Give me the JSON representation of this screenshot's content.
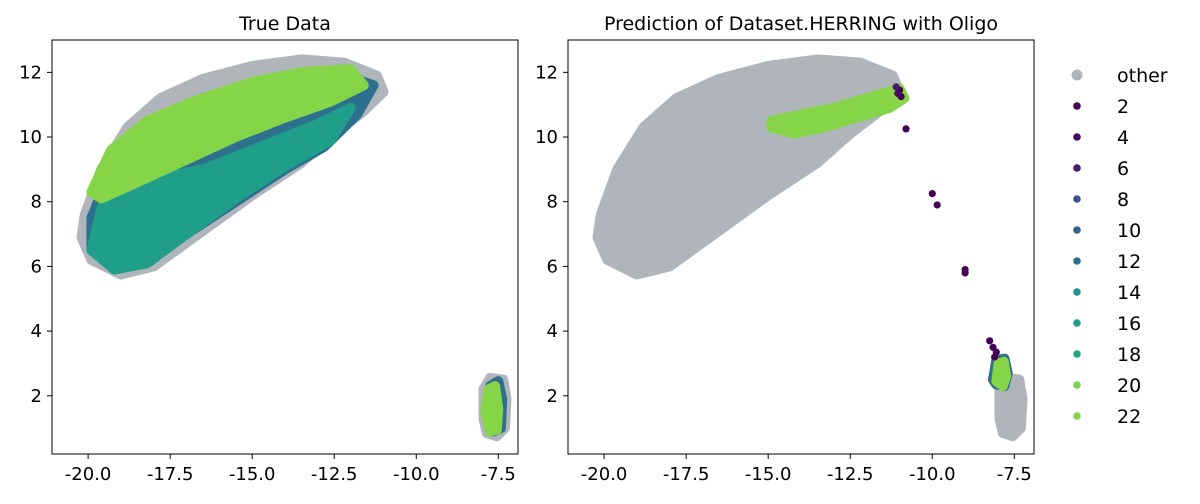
{
  "colors": {
    "other": "#b0b5bc",
    "c2": "#440154",
    "c4": "#460b5e",
    "c6": "#481a6c",
    "c8": "#3a528b",
    "c10": "#33638d",
    "c12": "#2d708e",
    "c14": "#21918c",
    "c16": "#1f9e89",
    "c18": "#22a884",
    "c20": "#7ad151",
    "c22": "#86d549"
  },
  "chart_data": [
    {
      "type": "scatter",
      "title": "True Data",
      "xlabel": "",
      "ylabel": "",
      "xlim": [
        -21.1,
        -6.9
      ],
      "ylim": [
        0.2,
        13.0
      ],
      "xticks": [
        -20.0,
        -17.5,
        -15.0,
        -12.5,
        -10.0,
        -7.5
      ],
      "xtick_labels": [
        "-20.0",
        "-17.5",
        "-15.0",
        "-12.5",
        "-10.0",
        "-7.5"
      ],
      "yticks": [
        2,
        4,
        6,
        8,
        10,
        12
      ],
      "ytick_labels": [
        "2",
        "4",
        "6",
        "8",
        "10",
        "12"
      ],
      "grid": false,
      "regions": [
        {
          "series": "other",
          "shape": "blob",
          "polygon": [
            [
              -20.1,
              7.6
            ],
            [
              -19.6,
              9.0
            ],
            [
              -18.8,
              10.3
            ],
            [
              -17.8,
              11.2
            ],
            [
              -16.5,
              11.8
            ],
            [
              -15.0,
              12.2
            ],
            [
              -13.5,
              12.4
            ],
            [
              -12.2,
              12.3
            ],
            [
              -11.2,
              11.9
            ],
            [
              -11.0,
              11.4
            ],
            [
              -11.6,
              10.8
            ],
            [
              -12.5,
              10.1
            ],
            [
              -13.5,
              9.2
            ],
            [
              -15.0,
              8.2
            ],
            [
              -16.5,
              7.1
            ],
            [
              -18.0,
              6.0
            ],
            [
              -19.0,
              5.75
            ],
            [
              -19.9,
              6.2
            ],
            [
              -20.2,
              6.9
            ]
          ]
        },
        {
          "series": "12",
          "shape": "blob",
          "polygon": [
            [
              -19.5,
              8.5
            ],
            [
              -18.5,
              10.0
            ],
            [
              -16.5,
              11.2
            ],
            [
              -14.5,
              11.8
            ],
            [
              -12.5,
              12.0
            ],
            [
              -11.3,
              11.6
            ],
            [
              -11.8,
              10.7
            ],
            [
              -12.8,
              9.7
            ],
            [
              -14.0,
              9.0
            ],
            [
              -15.5,
              8.0
            ],
            [
              -17.0,
              7.0
            ],
            [
              -18.2,
              6.2
            ],
            [
              -19.2,
              6.1
            ],
            [
              -19.9,
              6.6
            ],
            [
              -19.9,
              7.5
            ]
          ]
        },
        {
          "series": "16",
          "shape": "blob",
          "polygon": [
            [
              -19.9,
              6.5
            ],
            [
              -19.6,
              7.8
            ],
            [
              -18.5,
              8.6
            ],
            [
              -16.5,
              9.0
            ],
            [
              -14.5,
              9.8
            ],
            [
              -13.0,
              10.4
            ],
            [
              -12.0,
              10.9
            ],
            [
              -12.6,
              9.9
            ],
            [
              -14.0,
              9.1
            ],
            [
              -15.5,
              8.1
            ],
            [
              -17.0,
              7.0
            ],
            [
              -18.2,
              6.1
            ],
            [
              -19.2,
              5.9
            ]
          ]
        },
        {
          "series": "22",
          "shape": "blob",
          "polygon": [
            [
              -19.9,
              8.3
            ],
            [
              -19.3,
              9.6
            ],
            [
              -18.2,
              10.5
            ],
            [
              -16.8,
              11.1
            ],
            [
              -15.0,
              11.7
            ],
            [
              -13.5,
              12.0
            ],
            [
              -12.0,
              12.1
            ],
            [
              -11.6,
              11.6
            ],
            [
              -12.6,
              11.1
            ],
            [
              -14.0,
              10.6
            ],
            [
              -15.5,
              10.0
            ],
            [
              -17.0,
              9.3
            ],
            [
              -18.5,
              8.6
            ],
            [
              -19.6,
              8.1
            ]
          ]
        },
        {
          "series": "other",
          "shape": "blob",
          "polygon": [
            [
              -7.95,
              1.3
            ],
            [
              -7.95,
              2.2
            ],
            [
              -7.75,
              2.55
            ],
            [
              -7.35,
              2.5
            ],
            [
              -7.25,
              1.9
            ],
            [
              -7.3,
              1.0
            ],
            [
              -7.55,
              0.75
            ],
            [
              -7.85,
              0.85
            ]
          ]
        },
        {
          "series": "12",
          "shape": "blob",
          "polygon": [
            [
              -7.8,
              1.4
            ],
            [
              -7.75,
              2.3
            ],
            [
              -7.5,
              2.45
            ],
            [
              -7.38,
              1.9
            ],
            [
              -7.42,
              1.0
            ],
            [
              -7.65,
              0.9
            ]
          ]
        },
        {
          "series": "22",
          "shape": "blob",
          "polygon": [
            [
              -7.9,
              1.5
            ],
            [
              -7.8,
              2.2
            ],
            [
              -7.6,
              2.3
            ],
            [
              -7.5,
              1.6
            ],
            [
              -7.55,
              0.95
            ],
            [
              -7.75,
              0.9
            ]
          ]
        }
      ]
    },
    {
      "type": "scatter",
      "title": "Prediction of Dataset.HERRING with Oligo",
      "xlabel": "",
      "ylabel": "",
      "xlim": [
        -21.1,
        -6.9
      ],
      "ylim": [
        0.2,
        13.0
      ],
      "xticks": [
        -20.0,
        -17.5,
        -15.0,
        -12.5,
        -10.0,
        -7.5
      ],
      "xtick_labels": [
        "-20.0",
        "-17.5",
        "-15.0",
        "-12.5",
        "-10.0",
        "-7.5"
      ],
      "yticks": [
        2,
        4,
        6,
        8,
        10,
        12
      ],
      "ytick_labels": [
        "2",
        "4",
        "6",
        "8",
        "10",
        "12"
      ],
      "grid": false,
      "regions": [
        {
          "series": "other",
          "shape": "blob",
          "polygon": [
            [
              -20.1,
              7.6
            ],
            [
              -19.6,
              9.0
            ],
            [
              -18.8,
              10.3
            ],
            [
              -17.8,
              11.2
            ],
            [
              -16.5,
              11.8
            ],
            [
              -15.0,
              12.2
            ],
            [
              -13.5,
              12.4
            ],
            [
              -12.2,
              12.3
            ],
            [
              -11.2,
              11.9
            ],
            [
              -11.0,
              11.4
            ],
            [
              -11.6,
              10.8
            ],
            [
              -12.5,
              10.1
            ],
            [
              -13.5,
              9.2
            ],
            [
              -15.0,
              8.2
            ],
            [
              -16.5,
              7.1
            ],
            [
              -18.0,
              6.0
            ],
            [
              -19.0,
              5.75
            ],
            [
              -19.9,
              6.2
            ],
            [
              -20.2,
              6.9
            ]
          ]
        },
        {
          "series": "other",
          "shape": "blob",
          "polygon": [
            [
              -7.95,
              1.3
            ],
            [
              -7.95,
              2.2
            ],
            [
              -7.75,
              2.55
            ],
            [
              -7.35,
              2.5
            ],
            [
              -7.25,
              1.9
            ],
            [
              -7.3,
              1.0
            ],
            [
              -7.55,
              0.75
            ],
            [
              -7.85,
              0.85
            ]
          ]
        },
        {
          "series": "22",
          "shape": "blob",
          "polygon": [
            [
              -14.9,
              10.5
            ],
            [
              -14.0,
              10.7
            ],
            [
              -13.0,
              10.9
            ],
            [
              -12.0,
              11.2
            ],
            [
              -11.0,
              11.5
            ],
            [
              -10.85,
              11.2
            ],
            [
              -11.3,
              10.9
            ],
            [
              -12.3,
              10.6
            ],
            [
              -13.3,
              10.3
            ],
            [
              -14.2,
              10.1
            ],
            [
              -14.9,
              10.3
            ]
          ]
        },
        {
          "series": "12",
          "shape": "blob",
          "polygon": [
            [
              -8.15,
              2.5
            ],
            [
              -8.05,
              3.1
            ],
            [
              -7.8,
              3.15
            ],
            [
              -7.7,
              2.7
            ],
            [
              -7.8,
              2.3
            ],
            [
              -8.05,
              2.35
            ]
          ]
        },
        {
          "series": "22",
          "shape": "blob",
          "polygon": [
            [
              -8.05,
              2.45
            ],
            [
              -7.98,
              3.0
            ],
            [
              -7.82,
              3.05
            ],
            [
              -7.75,
              2.6
            ],
            [
              -7.85,
              2.3
            ]
          ]
        }
      ],
      "points": [
        {
          "series": "2",
          "x": -10.8,
          "y": 10.25
        },
        {
          "series": "2",
          "x": -10.95,
          "y": 11.25
        },
        {
          "series": "2",
          "x": -11.0,
          "y": 11.45
        },
        {
          "series": "2",
          "x": -10.0,
          "y": 8.25
        },
        {
          "series": "2",
          "x": -9.85,
          "y": 7.9
        },
        {
          "series": "2",
          "x": -9.0,
          "y": 5.9
        },
        {
          "series": "2",
          "x": -9.0,
          "y": 5.8
        },
        {
          "series": "2",
          "x": -8.25,
          "y": 3.7
        },
        {
          "series": "2",
          "x": -8.15,
          "y": 3.5
        },
        {
          "series": "2",
          "x": -8.05,
          "y": 3.35
        },
        {
          "series": "2",
          "x": -8.1,
          "y": 3.2
        },
        {
          "series": "4",
          "x": -11.05,
          "y": 11.35
        },
        {
          "series": "6",
          "x": -11.1,
          "y": 11.55
        }
      ]
    }
  ],
  "legend": {
    "placement": "right",
    "entries": [
      {
        "label": "other",
        "series": "other"
      },
      {
        "label": "2",
        "series": "2"
      },
      {
        "label": "4",
        "series": "4"
      },
      {
        "label": "6",
        "series": "6"
      },
      {
        "label": "8",
        "series": "8"
      },
      {
        "label": "10",
        "series": "10"
      },
      {
        "label": "12",
        "series": "12"
      },
      {
        "label": "14",
        "series": "14"
      },
      {
        "label": "16",
        "series": "16"
      },
      {
        "label": "18",
        "series": "18"
      },
      {
        "label": "20",
        "series": "20"
      },
      {
        "label": "22",
        "series": "22"
      }
    ]
  }
}
